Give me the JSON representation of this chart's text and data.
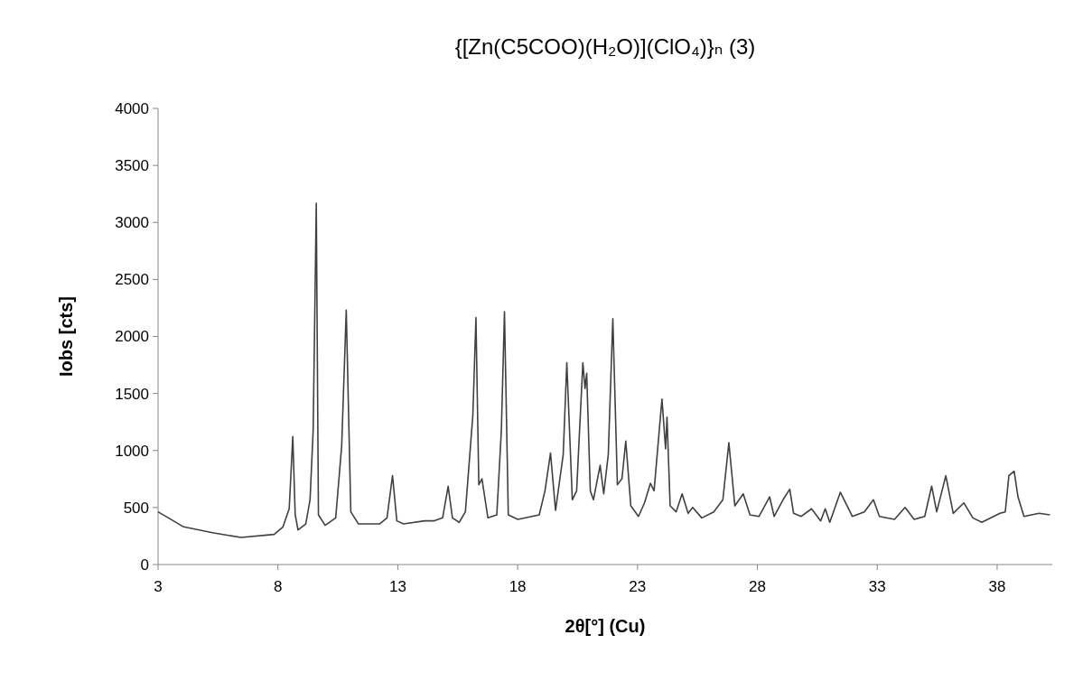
{
  "chart_data": {
    "type": "line",
    "title": "{[Zn(C5COO)(H₂O)](ClO₄)}ₙ (3)",
    "xlabel": "2θ[°] (Cu)",
    "ylabel": "Iobs [cts]",
    "xlim": [
      3,
      40.3
    ],
    "xticks": [
      3,
      8,
      13,
      18,
      23,
      28,
      33,
      38
    ],
    "ylim": [
      0,
      4000
    ],
    "yticks": [
      0,
      500,
      1000,
      1500,
      2000,
      2500,
      3000,
      3500,
      4000
    ],
    "marker": "none",
    "line_style": "solid",
    "series": [
      {
        "color": "#404040",
        "x": [
          3,
          4.07,
          5.32,
          6.46,
          7.84,
          8.21,
          8.47,
          8.62,
          8.72,
          8.84,
          9.16,
          9.34,
          9.47,
          9.6,
          9.69,
          9.97,
          10.41,
          10.66,
          10.85,
          11.04,
          11.36,
          12.24,
          12.55,
          12.78,
          12.96,
          13.24,
          14.12,
          14.5,
          14.87,
          15.1,
          15.28,
          15.56,
          15.82,
          16.13,
          16.26,
          16.38,
          16.51,
          16.76,
          17.13,
          17.32,
          17.45,
          17.61,
          18.01,
          18.9,
          19.14,
          19.37,
          19.58,
          19.9,
          20.05,
          20.28,
          20.46,
          20.72,
          20.81,
          20.88,
          21.03,
          21.16,
          21.44,
          21.59,
          21.78,
          21.97,
          22.16,
          22.35,
          22.51,
          22.72,
          23.04,
          23.29,
          23.54,
          23.69,
          24.02,
          24.17,
          24.23,
          24.36,
          24.61,
          24.86,
          25.11,
          25.3,
          25.68,
          26.18,
          26.56,
          26.81,
          27.06,
          27.41,
          27.69,
          28.07,
          28.51,
          28.7,
          29.07,
          29.35,
          29.51,
          29.83,
          30.26,
          30.64,
          30.83,
          31.02,
          31.46,
          31.96,
          32.46,
          32.84,
          33.09,
          33.72,
          34.16,
          34.54,
          34.98,
          35.27,
          35.48,
          35.86,
          36.17,
          36.61,
          36.99,
          37.36,
          38.12,
          38.34,
          38.49,
          38.71,
          38.87,
          39.12,
          39.75,
          40.2
        ],
        "values": [
          462,
          330,
          277,
          238,
          264,
          330,
          489,
          1122,
          436,
          303,
          356,
          568,
          1175,
          3168,
          436,
          343,
          409,
          1043,
          2231,
          462,
          356,
          356,
          409,
          779,
          383,
          356,
          383,
          383,
          409,
          687,
          409,
          370,
          462,
          1307,
          2165,
          700,
          752,
          409,
          436,
          1175,
          2218,
          436,
          396,
          436,
          647,
          977,
          475,
          964,
          1769,
          568,
          647,
          1769,
          1544,
          1677,
          647,
          568,
          871,
          620,
          964,
          2157,
          700,
          752,
          1083,
          515,
          422,
          541,
          713,
          647,
          1452,
          1014,
          1293,
          515,
          462,
          620,
          449,
          501,
          409,
          462,
          568,
          1069,
          515,
          620,
          436,
          422,
          594,
          422,
          568,
          660,
          449,
          422,
          489,
          383,
          489,
          370,
          634,
          422,
          462,
          568,
          422,
          396,
          501,
          396,
          422,
          687,
          462,
          779,
          449,
          541,
          409,
          370,
          449,
          462,
          779,
          818,
          594,
          422,
          449,
          436
        ]
      }
    ]
  }
}
